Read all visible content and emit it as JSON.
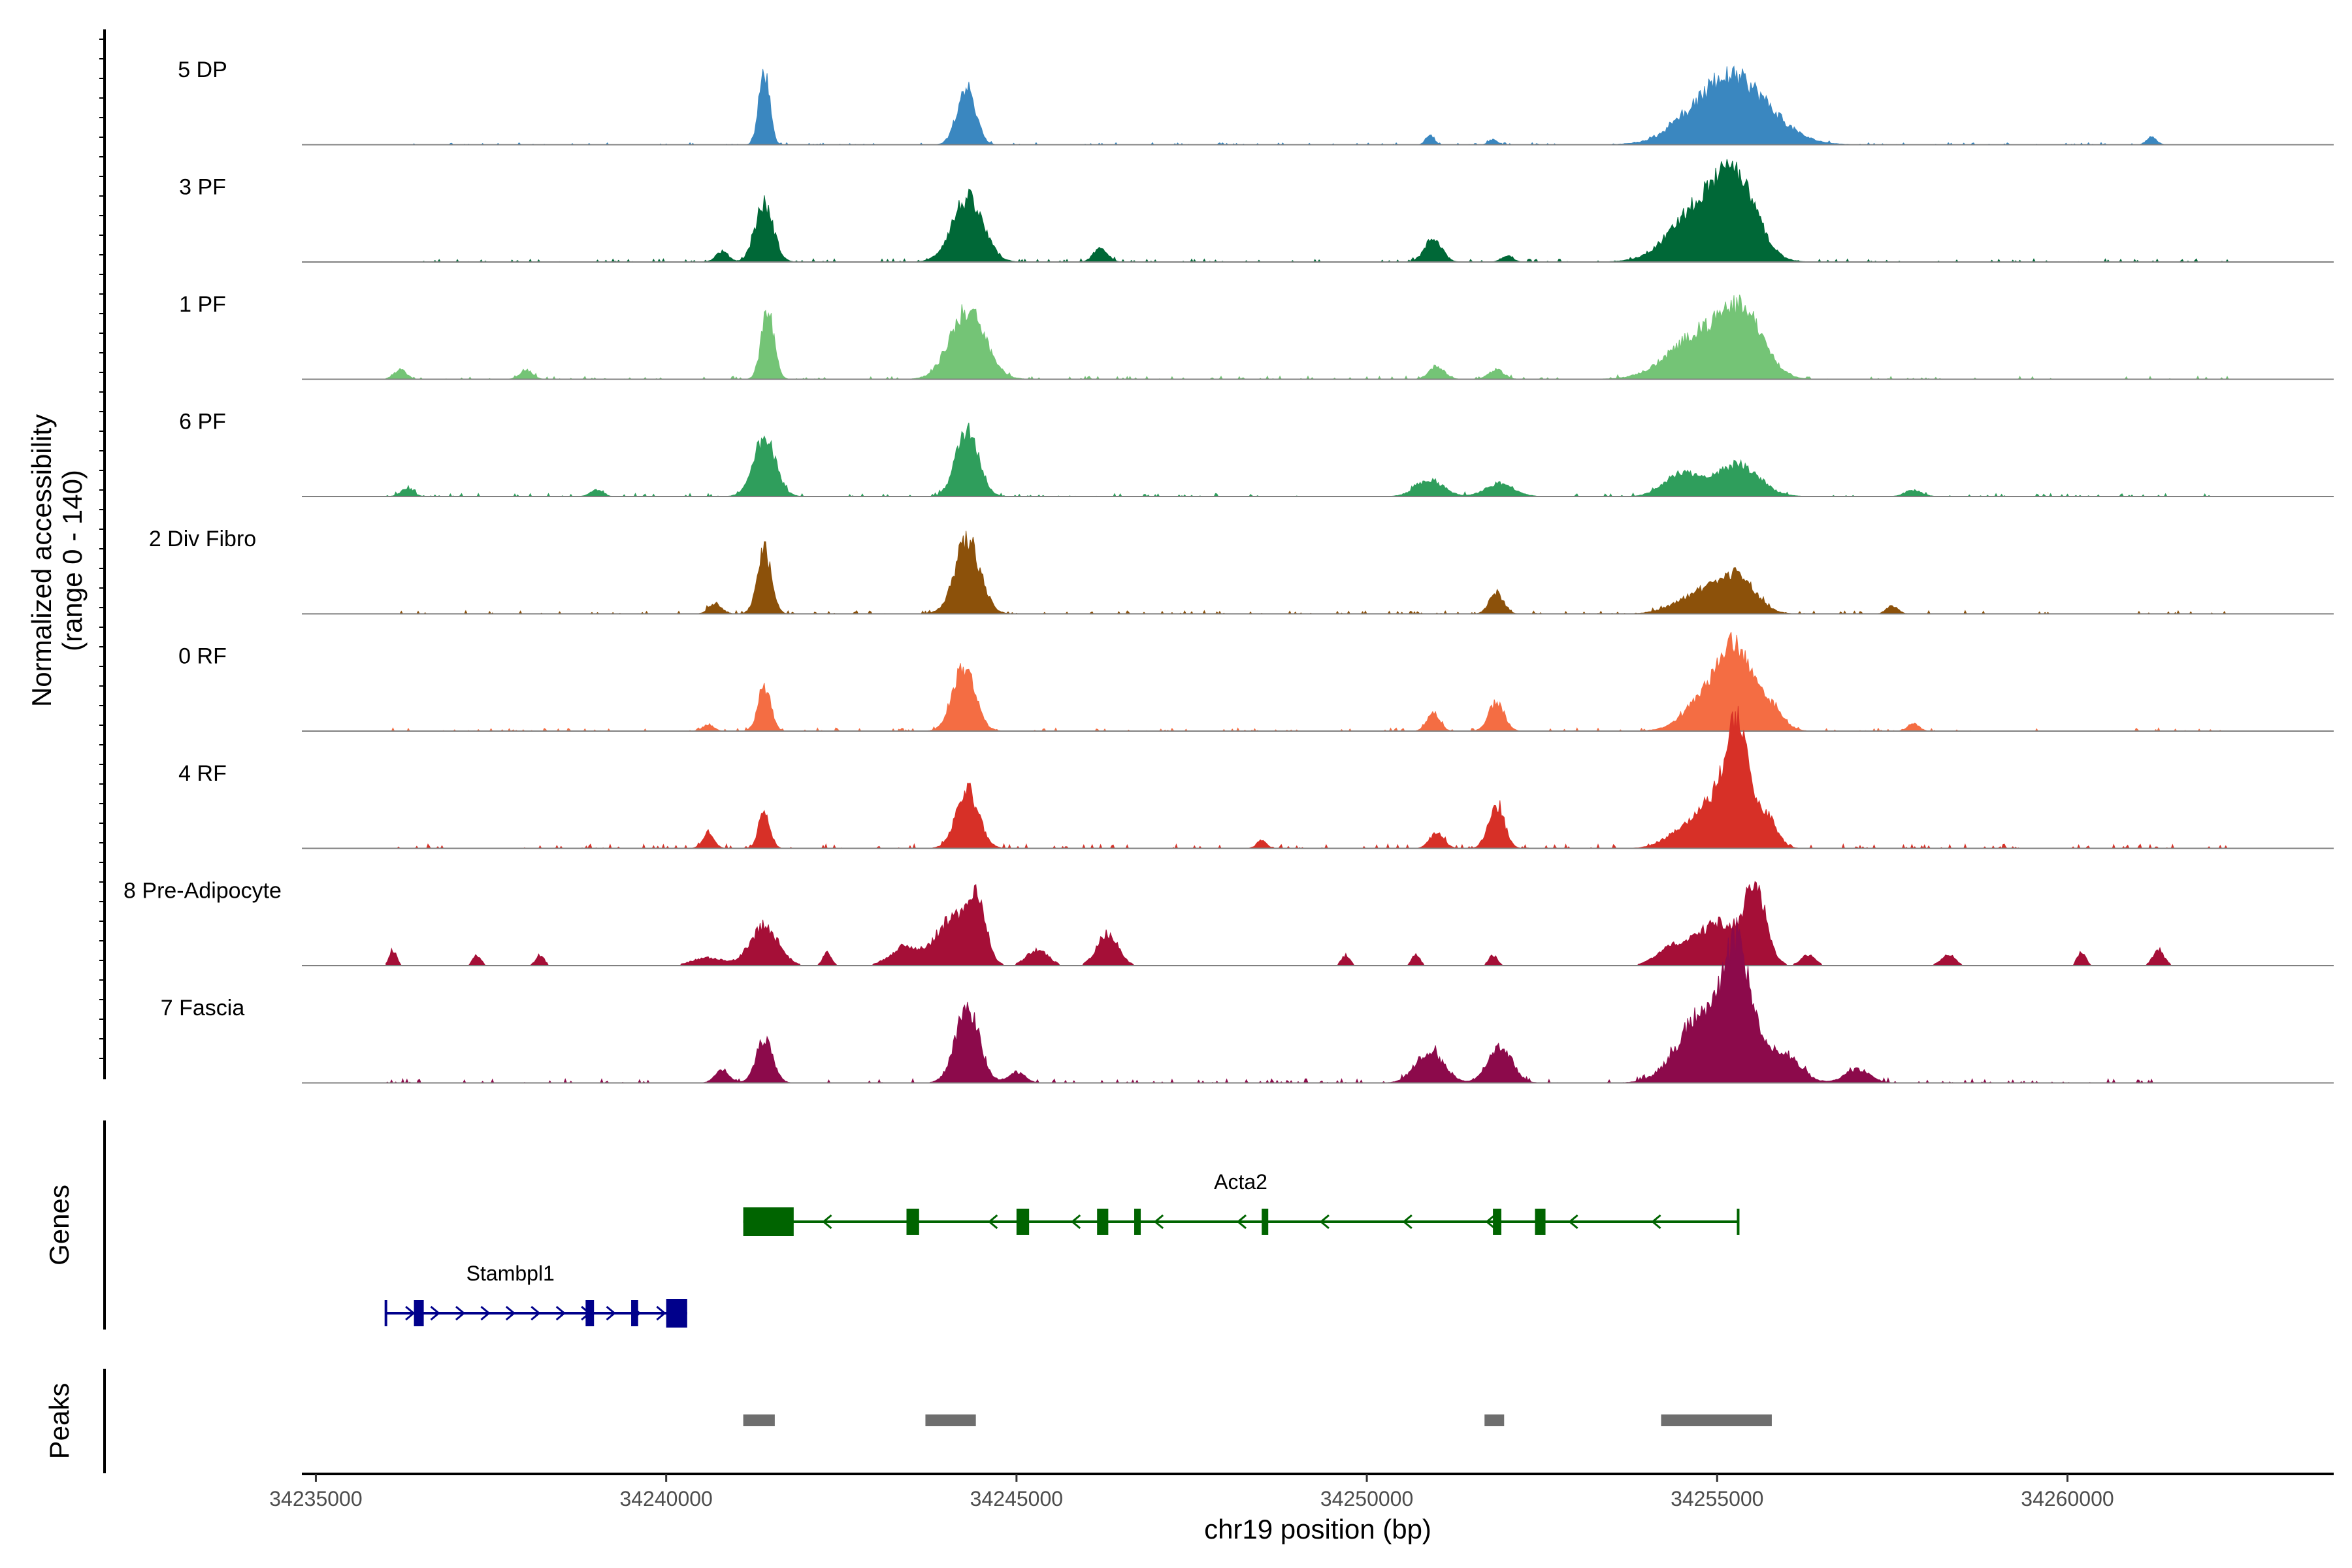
{
  "chart_data": {
    "type": "area",
    "title": "",
    "xlabel": "chr19 position (bp)",
    "ylabel": "Normalized accessibility\n(range 0 - 140)",
    "ylabel_line1": "Normalized accessibility",
    "ylabel_line2": "(range 0 - 140)",
    "xlim": [
      34234800,
      34263800
    ],
    "ylim": [
      0,
      140
    ],
    "x_ticks": [
      34235000,
      34240000,
      34245000,
      34250000,
      34255000,
      34260000
    ],
    "x_tick_labels": [
      "34235000",
      "34240000",
      "34245000",
      "34250000",
      "34255000",
      "34260000"
    ],
    "tracks": [
      {
        "name": "5 DP",
        "color": "#3a87c0",
        "coverage_range": [
          34236000,
          34261400
        ],
        "baseline_noise": 2,
        "peaks": [
          [
            34241400,
            140,
            22,
            75
          ],
          [
            34244280,
            110,
            28,
            130
          ],
          [
            34250900,
            18,
            6,
            60
          ],
          [
            34251800,
            10,
            4,
            60
          ],
          [
            34254400,
            12,
            5,
            80
          ],
          [
            34255200,
            130,
            30,
            520
          ],
          [
            34261200,
            14,
            6,
            70
          ]
        ]
      },
      {
        "name": "3 PF",
        "color": "#006837",
        "coverage_range": [
          34236000,
          34262300
        ],
        "baseline_noise": 3,
        "peaks": [
          [
            34240800,
            20,
            8,
            90
          ],
          [
            34241400,
            110,
            18,
            130
          ],
          [
            34244300,
            120,
            50,
            220
          ],
          [
            34246200,
            25,
            8,
            100
          ],
          [
            34250950,
            45,
            10,
            120
          ],
          [
            34252000,
            12,
            6,
            80
          ],
          [
            34254800,
            110,
            60,
            420
          ],
          [
            34255300,
            120,
            85,
            280
          ]
        ]
      },
      {
        "name": "1 PF",
        "color": "#74c476",
        "coverage_range": [
          34236000,
          34262300
        ],
        "baseline_noise": 3,
        "peaks": [
          [
            34236200,
            18,
            8,
            90
          ],
          [
            34238000,
            18,
            8,
            90
          ],
          [
            34241450,
            130,
            15,
            90
          ],
          [
            34244300,
            130,
            40,
            250
          ],
          [
            34251000,
            25,
            10,
            110
          ],
          [
            34251850,
            18,
            10,
            110
          ],
          [
            34254800,
            90,
            40,
            450
          ],
          [
            34255400,
            100,
            55,
            280
          ]
        ]
      },
      {
        "name": "6 PF",
        "color": "#2f9e5c",
        "coverage_range": [
          34236000,
          34262300
        ],
        "baseline_noise": 3,
        "peaks": [
          [
            34236300,
            15,
            8,
            90
          ],
          [
            34239000,
            12,
            8,
            90
          ],
          [
            34241400,
            110,
            30,
            160
          ],
          [
            34244300,
            130,
            45,
            160
          ],
          [
            34250900,
            30,
            14,
            200
          ],
          [
            34251900,
            25,
            12,
            200
          ],
          [
            34254500,
            45,
            30,
            250
          ],
          [
            34255300,
            60,
            50,
            300
          ],
          [
            34257800,
            12,
            8,
            120
          ]
        ]
      },
      {
        "name": "2 Div Fibro",
        "color": "#8c510a",
        "coverage_range": [
          34236000,
          34262300
        ],
        "baseline_noise": 3,
        "peaks": [
          [
            34240700,
            20,
            8,
            90
          ],
          [
            34241400,
            120,
            20,
            100
          ],
          [
            34244300,
            140,
            30,
            180
          ],
          [
            34251850,
            40,
            10,
            100
          ],
          [
            34254800,
            40,
            25,
            350
          ],
          [
            34255300,
            60,
            40,
            250
          ],
          [
            34257500,
            15,
            6,
            80
          ]
        ]
      },
      {
        "name": "0 RF",
        "color": "#f46d43",
        "coverage_range": [
          34236000,
          34262300
        ],
        "baseline_noise": 3,
        "peaks": [
          [
            34240600,
            12,
            6,
            80
          ],
          [
            34241400,
            85,
            10,
            90
          ],
          [
            34244250,
            120,
            20,
            160
          ],
          [
            34250950,
            35,
            8,
            90
          ],
          [
            34251850,
            55,
            12,
            110
          ],
          [
            34254900,
            70,
            40,
            320
          ],
          [
            34255250,
            130,
            55,
            220
          ],
          [
            34255700,
            50,
            20,
            200
          ],
          [
            34257800,
            15,
            6,
            80
          ]
        ]
      },
      {
        "name": "4 RF",
        "color": "#d73027",
        "coverage_range": [
          34236000,
          34262300
        ],
        "baseline_noise": 4,
        "peaks": [
          [
            34240600,
            30,
            8,
            80
          ],
          [
            34241400,
            70,
            10,
            80
          ],
          [
            34244300,
            110,
            30,
            160
          ],
          [
            34248500,
            15,
            6,
            70
          ],
          [
            34251000,
            30,
            10,
            100
          ],
          [
            34251850,
            85,
            12,
            110
          ],
          [
            34254500,
            30,
            20,
            250
          ],
          [
            34255000,
            90,
            50,
            250
          ],
          [
            34255300,
            205,
            65,
            150
          ],
          [
            34255700,
            60,
            30,
            150
          ]
        ]
      },
      {
        "name": "8 Pre-Adipocyte",
        "color": "#a50f37",
        "coverage_range": [
          34236000,
          34261800
        ],
        "baseline_noise": 0,
        "peaks": [
          [
            34236100,
            30,
            18,
            50
          ],
          [
            34237300,
            20,
            18,
            60
          ],
          [
            34238200,
            20,
            18,
            60
          ],
          [
            34240600,
            15,
            12,
            220
          ],
          [
            34241400,
            75,
            25,
            200
          ],
          [
            34242300,
            25,
            12,
            60
          ],
          [
            34243400,
            35,
            20,
            200
          ],
          [
            34244100,
            90,
            40,
            250
          ],
          [
            34244450,
            100,
            50,
            120
          ],
          [
            34245300,
            30,
            20,
            150
          ],
          [
            34246300,
            60,
            25,
            150
          ],
          [
            34249700,
            20,
            15,
            60
          ],
          [
            34250700,
            20,
            15,
            60
          ],
          [
            34251800,
            20,
            15,
            60
          ],
          [
            34254300,
            25,
            15,
            200
          ],
          [
            34255000,
            80,
            35,
            350
          ],
          [
            34255550,
            130,
            50,
            150
          ],
          [
            34256300,
            20,
            15,
            100
          ],
          [
            34258300,
            20,
            15,
            100
          ],
          [
            34260200,
            25,
            15,
            60
          ],
          [
            34261300,
            30,
            15,
            80
          ]
        ]
      },
      {
        "name": "7 Fascia",
        "color": "#8c0a4b",
        "coverage_range": [
          34236000,
          34261300
        ],
        "baseline_noise": 4,
        "peaks": [
          [
            34240800,
            25,
            10,
            100
          ],
          [
            34241400,
            80,
            15,
            120
          ],
          [
            34244300,
            140,
            40,
            170
          ],
          [
            34245000,
            20,
            10,
            120
          ],
          [
            34250900,
            60,
            20,
            200
          ],
          [
            34251900,
            70,
            20,
            170
          ],
          [
            34254800,
            130,
            60,
            350
          ],
          [
            34255300,
            220,
            90,
            200
          ],
          [
            34255900,
            60,
            30,
            250
          ],
          [
            34257000,
            25,
            12,
            180
          ]
        ]
      }
    ],
    "genes_track_label": "Genes",
    "genes": [
      {
        "name": "Acta2",
        "strand": "-",
        "color": "#006400",
        "start": 34241100,
        "end": 34255300,
        "exons": [
          [
            34241100,
            34241820
          ],
          [
            34243430,
            34243610
          ],
          [
            34245000,
            34245180
          ],
          [
            34246150,
            34246310
          ],
          [
            34246680,
            34246760
          ],
          [
            34248500,
            34248580
          ],
          [
            34251800,
            34251920
          ],
          [
            34252400,
            34252550
          ]
        ]
      },
      {
        "name": "Stambpl1",
        "strand": "+",
        "color": "#00008b",
        "start": 34236000,
        "end": 34240300,
        "exons": [
          [
            34236400,
            34236540
          ],
          [
            34238850,
            34238970
          ],
          [
            34239500,
            34239600
          ],
          [
            34240000,
            34240300
          ]
        ]
      }
    ],
    "peaks_track_label": "Peaks",
    "peak_regions": [
      [
        34241100,
        34241550
      ],
      [
        34243700,
        34244420
      ],
      [
        34251680,
        34251960
      ],
      [
        34254200,
        34255780
      ]
    ]
  }
}
